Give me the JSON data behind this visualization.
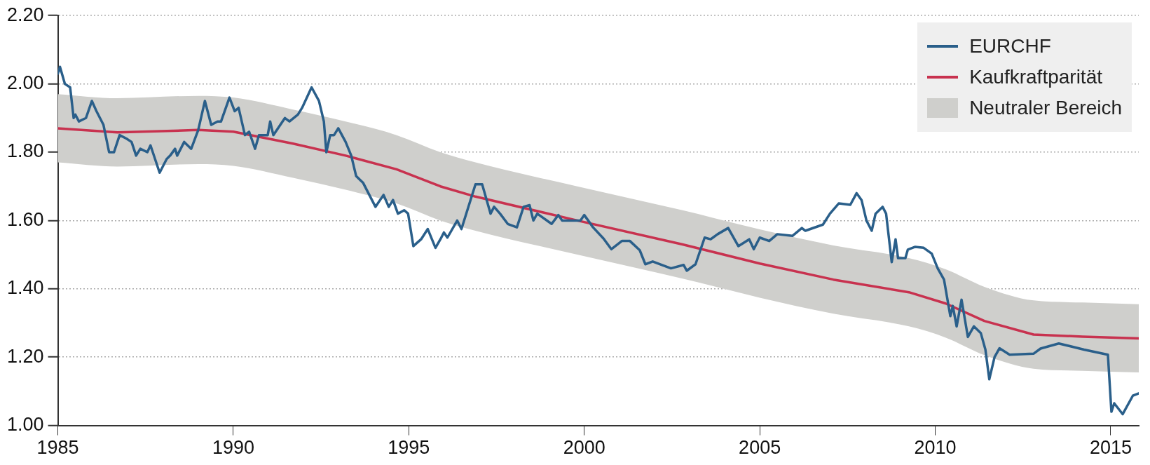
{
  "chart_data": {
    "type": "line",
    "xlim": [
      1985,
      2015.8
    ],
    "xticks": [
      1985,
      1990,
      1995,
      2000,
      2005,
      2010,
      2015
    ],
    "ylim": [
      1.0,
      2.2
    ],
    "yticks": [
      {
        "value": 1.0,
        "label": "1.00"
      },
      {
        "value": 1.2,
        "label": "1.20"
      },
      {
        "value": 1.4,
        "label": "1.40"
      },
      {
        "value": 1.6,
        "label": "1.60"
      },
      {
        "value": 1.8,
        "label": "1.80"
      },
      {
        "value": 2.0,
        "label": "2.00"
      },
      {
        "value": 2.2,
        "label": "2.20"
      }
    ],
    "grid": "y",
    "legend": "top right",
    "line_style": "solid",
    "marker": "none",
    "annotations": [
      "Neutraler Bereich"
    ],
    "series": [
      {
        "type": "line",
        "name": "EURCHF",
        "color": "#2a5f8a",
        "x": [
          1985.0,
          1985.06,
          1985.2,
          1985.35,
          1985.45,
          1985.5,
          1985.6,
          1985.8,
          1985.97,
          1986.1,
          1986.3,
          1986.46,
          1986.6,
          1986.76,
          1986.95,
          1987.1,
          1987.23,
          1987.35,
          1987.55,
          1987.64,
          1987.9,
          1988.1,
          1988.2,
          1988.34,
          1988.4,
          1988.6,
          1988.8,
          1989.0,
          1989.19,
          1989.37,
          1989.55,
          1989.65,
          1989.89,
          1990.04,
          1990.15,
          1990.33,
          1990.45,
          1990.62,
          1990.73,
          1990.98,
          1991.05,
          1991.14,
          1991.47,
          1991.6,
          1991.84,
          1991.96,
          1992.23,
          1992.44,
          1992.58,
          1992.65,
          1992.76,
          1992.87,
          1992.99,
          1993.2,
          1993.36,
          1993.5,
          1993.7,
          1994.05,
          1994.28,
          1994.43,
          1994.55,
          1994.69,
          1994.87,
          1994.98,
          1995.13,
          1995.35,
          1995.54,
          1995.76,
          1995.9,
          1996.0,
          1996.1,
          1996.38,
          1996.5,
          1996.9,
          1997.09,
          1997.33,
          1997.43,
          1997.6,
          1997.82,
          1998.08,
          1998.27,
          1998.44,
          1998.55,
          1998.66,
          1999.07,
          1999.26,
          1999.37,
          1999.89,
          2000.0,
          2000.25,
          2000.55,
          2000.77,
          2001.07,
          2001.3,
          2001.58,
          2001.74,
          2001.95,
          2002.47,
          2002.83,
          2002.92,
          2003.17,
          2003.43,
          2003.6,
          2003.8,
          2004.1,
          2004.39,
          2004.7,
          2004.83,
          2005.0,
          2005.27,
          2005.5,
          2005.93,
          2006.2,
          2006.3,
          2006.8,
          2007.0,
          2007.25,
          2007.58,
          2007.76,
          2007.9,
          2008.04,
          2008.19,
          2008.3,
          2008.5,
          2008.6,
          2008.76,
          2008.87,
          2008.94,
          2009.15,
          2009.22,
          2009.43,
          2009.67,
          2009.9,
          2010.07,
          2010.25,
          2010.43,
          2010.5,
          2010.61,
          2010.75,
          2010.93,
          2011.1,
          2011.3,
          2011.43,
          2011.54,
          2011.69,
          2011.83,
          2012.12,
          2012.8,
          2013.0,
          2013.52,
          2014.24,
          2014.92,
          2015.02,
          2015.1,
          2015.34,
          2015.63,
          2015.8
        ],
        "values": [
          2.03,
          2.05,
          2.0,
          1.99,
          1.9,
          1.91,
          1.89,
          1.9,
          1.95,
          1.92,
          1.88,
          1.8,
          1.8,
          1.85,
          1.84,
          1.83,
          1.79,
          1.81,
          1.8,
          1.82,
          1.74,
          1.78,
          1.79,
          1.81,
          1.79,
          1.83,
          1.81,
          1.865,
          1.95,
          1.88,
          1.89,
          1.89,
          1.96,
          1.92,
          1.93,
          1.85,
          1.86,
          1.81,
          1.85,
          1.85,
          1.89,
          1.85,
          1.9,
          1.89,
          1.91,
          1.93,
          1.99,
          1.95,
          1.89,
          1.8,
          1.85,
          1.85,
          1.87,
          1.83,
          1.79,
          1.73,
          1.71,
          1.64,
          1.675,
          1.64,
          1.66,
          1.62,
          1.63,
          1.62,
          1.525,
          1.545,
          1.575,
          1.52,
          1.545,
          1.565,
          1.55,
          1.6,
          1.575,
          1.706,
          1.706,
          1.62,
          1.64,
          1.62,
          1.59,
          1.58,
          1.64,
          1.645,
          1.6,
          1.62,
          1.59,
          1.616,
          1.6,
          1.6,
          1.616,
          1.58,
          1.547,
          1.516,
          1.54,
          1.54,
          1.513,
          1.472,
          1.48,
          1.46,
          1.47,
          1.453,
          1.472,
          1.55,
          1.545,
          1.56,
          1.578,
          1.525,
          1.545,
          1.516,
          1.55,
          1.54,
          1.56,
          1.555,
          1.578,
          1.57,
          1.588,
          1.62,
          1.65,
          1.646,
          1.68,
          1.66,
          1.6,
          1.57,
          1.62,
          1.64,
          1.62,
          1.478,
          1.545,
          1.49,
          1.49,
          1.515,
          1.523,
          1.52,
          1.503,
          1.46,
          1.427,
          1.32,
          1.35,
          1.29,
          1.368,
          1.259,
          1.29,
          1.27,
          1.222,
          1.135,
          1.2,
          1.226,
          1.207,
          1.21,
          1.225,
          1.24,
          1.222,
          1.207,
          1.04,
          1.065,
          1.033,
          1.087,
          1.094
        ]
      },
      {
        "type": "line",
        "name": "Kaufkraftparität",
        "color": "#c8324f",
        "x": [
          1985,
          1986.7,
          1989,
          1990,
          1991.7,
          1993.2,
          1994.65,
          1995.9,
          1996.9,
          1999.8,
          2002.8,
          2005,
          2007.1,
          2009.25,
          2010.3,
          2011.4,
          2012.8,
          2014.2,
          2015.8
        ],
        "values": [
          1.87,
          1.858,
          1.865,
          1.86,
          1.825,
          1.79,
          1.75,
          1.7,
          1.67,
          1.6,
          1.53,
          1.474,
          1.427,
          1.39,
          1.357,
          1.306,
          1.266,
          1.26,
          1.255
        ],
        "lower": [
          1.77,
          1.758,
          1.765,
          1.76,
          1.725,
          1.69,
          1.65,
          1.6,
          1.57,
          1.5,
          1.43,
          1.374,
          1.327,
          1.29,
          1.257,
          1.206,
          1.166,
          1.16,
          1.155
        ],
        "upper": [
          1.97,
          1.958,
          1.965,
          1.96,
          1.925,
          1.89,
          1.85,
          1.8,
          1.77,
          1.7,
          1.63,
          1.574,
          1.527,
          1.49,
          1.457,
          1.406,
          1.366,
          1.36,
          1.355
        ]
      }
    ]
  }
}
